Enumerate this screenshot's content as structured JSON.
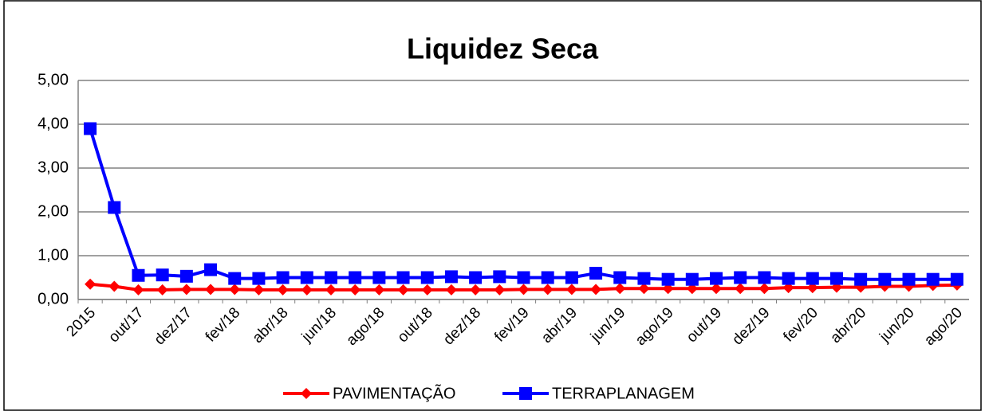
{
  "chart_data": {
    "type": "line",
    "title": "Liquidez Seca",
    "categories": [
      "2015",
      null,
      "out/17",
      null,
      "dez/17",
      null,
      "fev/18",
      null,
      "abr/18",
      null,
      "jun/18",
      null,
      "ago/18",
      null,
      "out/18",
      null,
      "dez/18",
      null,
      "fev/19",
      null,
      "abr/19",
      null,
      "jun/19",
      null,
      "ago/19",
      null,
      "out/19",
      null,
      "dez/19",
      null,
      "fev/20",
      null,
      "abr/20",
      null,
      "jun/20",
      null,
      "ago/20"
    ],
    "series": [
      {
        "name": "PAVIMENTAÇÃO",
        "color": "#ff0000",
        "marker": "diamond",
        "values": [
          0.35,
          0.3,
          0.22,
          0.22,
          0.23,
          0.23,
          0.23,
          0.22,
          0.22,
          0.22,
          0.22,
          0.22,
          0.22,
          0.22,
          0.22,
          0.22,
          0.22,
          0.22,
          0.23,
          0.23,
          0.23,
          0.23,
          0.25,
          0.25,
          0.25,
          0.25,
          0.25,
          0.25,
          0.25,
          0.27,
          0.27,
          0.28,
          0.28,
          0.3,
          0.3,
          0.32,
          0.33
        ]
      },
      {
        "name": "TERRAPLANAGEM",
        "color": "#0000ff",
        "marker": "square",
        "values": [
          3.9,
          2.1,
          0.55,
          0.56,
          0.53,
          0.68,
          0.48,
          0.48,
          0.5,
          0.5,
          0.5,
          0.5,
          0.5,
          0.5,
          0.5,
          0.52,
          0.5,
          0.52,
          0.5,
          0.5,
          0.5,
          0.6,
          0.5,
          0.48,
          0.46,
          0.46,
          0.48,
          0.5,
          0.5,
          0.48,
          0.48,
          0.48,
          0.46,
          0.46,
          0.46,
          0.46,
          0.46
        ]
      }
    ],
    "ylim": [
      0,
      5
    ],
    "yticks": [
      {
        "value": 0,
        "label": "0,00"
      },
      {
        "value": 1,
        "label": "1,00"
      },
      {
        "value": 2,
        "label": "2,00"
      },
      {
        "value": 3,
        "label": "3,00"
      },
      {
        "value": 4,
        "label": "4,00"
      },
      {
        "value": 5,
        "label": "5,00"
      }
    ],
    "grid": true,
    "legend": "bottom"
  }
}
